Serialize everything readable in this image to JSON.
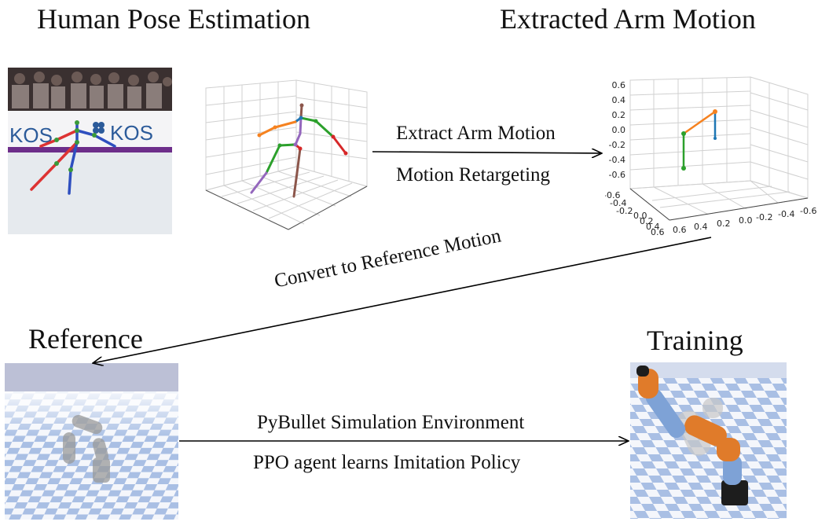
{
  "titles": {
    "top_left": "Human Pose Estimation",
    "top_right": "Extracted Arm Motion",
    "bottom_left": "Reference",
    "bottom_right": "Training"
  },
  "arrows": {
    "top": {
      "line1": "Extract Arm Motion",
      "line2": "Motion Retargeting"
    },
    "diagonal": {
      "label": "Convert to Reference Motion"
    },
    "bottom": {
      "line1": "PyBullet Simulation Environment",
      "line2": "PPO agent learns Imitation Policy"
    }
  },
  "photo": {
    "banner_text_1": "KOS",
    "banner_text_2": "KOS"
  },
  "arm_plot": {
    "z_ticks": [
      "0.6",
      "0.4",
      "0.2",
      "0.0",
      "-0.2",
      "-0.4",
      "-0.6"
    ],
    "y_ticks": [
      "-0.6",
      "-0.4",
      "-0.2",
      "0.0",
      "0.2",
      "0.4",
      "0.6"
    ],
    "x_ticks": [
      "0.6",
      "0.4",
      "0.2",
      "0.0",
      "-0.2",
      "-0.4",
      "-0.6"
    ]
  },
  "colors": {
    "orange": "#f58220",
    "blue": "#1f77b4",
    "green": "#2ca02c",
    "red": "#d62728",
    "purple": "#9467bd",
    "brown": "#8c564b",
    "checker_blue": "#a9bfe4",
    "robot_orange": "#e07b2a",
    "robot_blue": "#7ea2d6"
  }
}
